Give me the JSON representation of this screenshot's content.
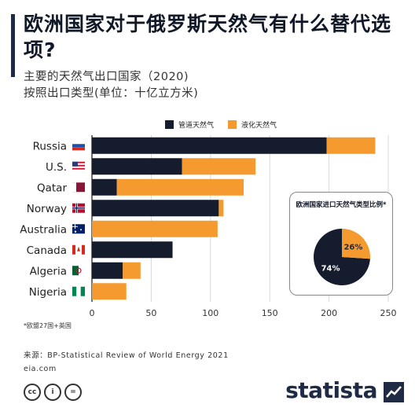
{
  "header": {
    "title": "欧洲国家对于俄罗斯天然气有什么替代选项?",
    "subtitle_line1": "主要的天然气出口国家（2020)",
    "subtitle_line2": "按照出口类型(单位：十亿立方米)"
  },
  "legend": {
    "pipeline": "管道天然气",
    "lng": "液化天然气"
  },
  "colors": {
    "pipeline": "#151c2e",
    "lng": "#f59a2f",
    "grid": "#d9d9d9",
    "axis": "#222222"
  },
  "chart_data": [
    {
      "type": "bar",
      "orientation": "horizontal",
      "stacked": true,
      "categories": [
        "Russia",
        "U.S.",
        "Qatar",
        "Norway",
        "Australia",
        "Canada",
        "Algeria",
        "Nigeria"
      ],
      "flags": [
        "russia-flag-icon",
        "us-flag-icon",
        "qatar-flag-icon",
        "norway-flag-icon",
        "australia-flag-icon",
        "canada-flag-icon",
        "algeria-flag-icon",
        "nigeria-flag-icon"
      ],
      "series": [
        {
          "name": "管道天然气",
          "values": [
            198,
            76,
            21,
            107,
            0,
            68,
            26,
            0
          ]
        },
        {
          "name": "液化天然气",
          "values": [
            41,
            62,
            107,
            4,
            106,
            0,
            15,
            29
          ]
        }
      ],
      "xlim": [
        0,
        250
      ],
      "xticks": [
        "0",
        "50",
        "100",
        "150",
        "200",
        "250"
      ],
      "grid": true,
      "legend_position": "top"
    },
    {
      "type": "pie",
      "title": "欧洲国家进口天然气类型比例*",
      "slices": [
        {
          "name": "管道天然气",
          "value": 74,
          "label": "74%"
        },
        {
          "name": "液化天然气",
          "value": 26,
          "label": "26%"
        }
      ]
    }
  ],
  "footnote": "*欧盟27国+英国",
  "source": {
    "line1": "来源：BP-Statistical Review of World Energy 2021",
    "line2": "eia.com"
  },
  "license": {
    "cc": "cc",
    "by": "i",
    "nd": "="
  },
  "brand": "statista"
}
